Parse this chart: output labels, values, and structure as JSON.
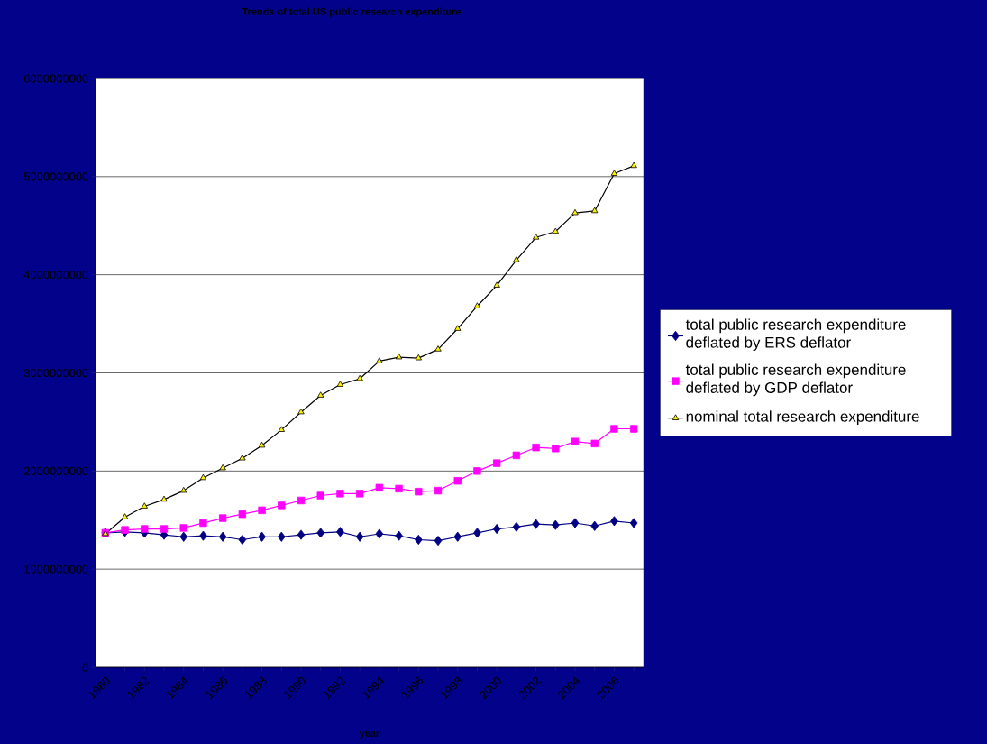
{
  "chart_data": {
    "type": "line",
    "title": "Trends of total US public research expenditure",
    "xlabel": "year",
    "categories": [
      "1980",
      null,
      "1982",
      null,
      "1984",
      null,
      "1986",
      null,
      "1988",
      null,
      "1990",
      null,
      "1992",
      null,
      "1994",
      null,
      "1996",
      null,
      "1998",
      null,
      "2000",
      null,
      "2002",
      null,
      "2004",
      null,
      "2006",
      null
    ],
    "series": [
      {
        "name": "total public research expenditure deflated by ERS deflator",
        "color": "#000080",
        "marker": "diamond",
        "values": [
          1370000000,
          1380000000,
          1370000000,
          1350000000,
          1330000000,
          1340000000,
          1330000000,
          1300000000,
          1330000000,
          1330000000,
          1350000000,
          1370000000,
          1380000000,
          1330000000,
          1360000000,
          1340000000,
          1300000000,
          1290000000,
          1330000000,
          1370000000,
          1410000000,
          1430000000,
          1460000000,
          1450000000,
          1470000000,
          1440000000,
          1490000000,
          1470000000
        ]
      },
      {
        "name": "total public research expenditure deflated by GDP deflator",
        "color": "#ff00ff",
        "marker": "square",
        "values": [
          1370000000,
          1400000000,
          1410000000,
          1410000000,
          1420000000,
          1470000000,
          1520000000,
          1560000000,
          1600000000,
          1650000000,
          1700000000,
          1750000000,
          1770000000,
          1770000000,
          1830000000,
          1820000000,
          1790000000,
          1800000000,
          1900000000,
          2000000000,
          2080000000,
          2160000000,
          2240000000,
          2230000000,
          2300000000,
          2280000000,
          2430000000,
          2430000000
        ]
      },
      {
        "name": "nominal total research expenditure",
        "color": "#000000",
        "marker": "triangle",
        "values": [
          1360000000,
          1530000000,
          1640000000,
          1710000000,
          1800000000,
          1930000000,
          2030000000,
          2130000000,
          2260000000,
          2420000000,
          2600000000,
          2770000000,
          2880000000,
          2940000000,
          3120000000,
          3160000000,
          3150000000,
          3240000000,
          3450000000,
          3680000000,
          3890000000,
          4150000000,
          4380000000,
          4440000000,
          4630000000,
          4650000000,
          5030000000,
          5110000000
        ]
      }
    ],
    "ylim": [
      0,
      6000000000
    ],
    "yticks": [
      0,
      1000000000,
      2000000000,
      3000000000,
      4000000000,
      5000000000,
      6000000000
    ],
    "grid": "y",
    "legend": "right",
    "line_style": "solid"
  }
}
